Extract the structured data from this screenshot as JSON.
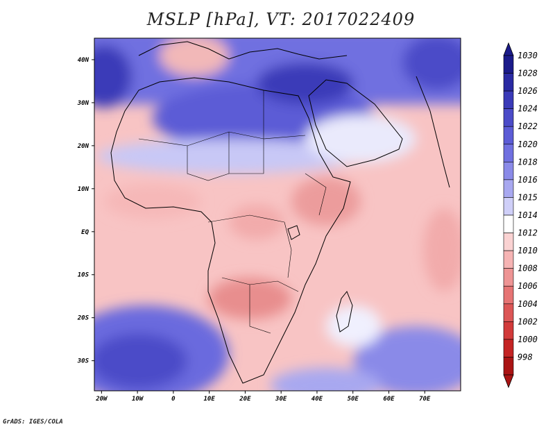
{
  "title": "MSLP [hPa], VT: 2017022409",
  "credit": "GrADS: IGES/COLA",
  "axes": {
    "lat_labels": [
      "40N",
      "30N",
      "20N",
      "10N",
      "EQ",
      "10S",
      "20S",
      "30S"
    ],
    "lat_values": [
      40,
      30,
      20,
      10,
      0,
      -10,
      -20,
      -30
    ],
    "lon_labels": [
      "20W",
      "10W",
      "0",
      "10E",
      "20E",
      "30E",
      "40E",
      "50E",
      "60E",
      "70E"
    ],
    "lon_values": [
      -20,
      -10,
      0,
      10,
      20,
      30,
      40,
      50,
      60,
      70
    ],
    "lon_range": [
      -22,
      80
    ],
    "lat_range": [
      -37,
      45
    ]
  },
  "colorbar": {
    "levels": [
      "1030",
      "1028",
      "1026",
      "1024",
      "1022",
      "1020",
      "1018",
      "1016",
      "1015",
      "1014",
      "1012",
      "1010",
      "1008",
      "1006",
      "1004",
      "1002",
      "1000",
      "998"
    ],
    "colors": [
      "#1b1b8a",
      "#2a2aa3",
      "#3a3ab8",
      "#4b4bc8",
      "#5c5cd6",
      "#7070e0",
      "#8a8ae8",
      "#a8a8f0",
      "#cfcff8",
      "#ffffff",
      "#fad2d2",
      "#f6b4b4",
      "#ee9494",
      "#e67474",
      "#dc5656",
      "#d23a3a",
      "#c42424",
      "#aa1414"
    ]
  },
  "field_colors": {
    "ocean_high": "#5858d0",
    "high_core": "#2e2ea8",
    "mid_high": "#8a8ae8",
    "light_high": "#c8c8f6",
    "neutral": "#ffffff",
    "light_low": "#fad2d2",
    "mid_low": "#f2abab",
    "deep_low": "#e48a8a",
    "coast": "#000000"
  }
}
